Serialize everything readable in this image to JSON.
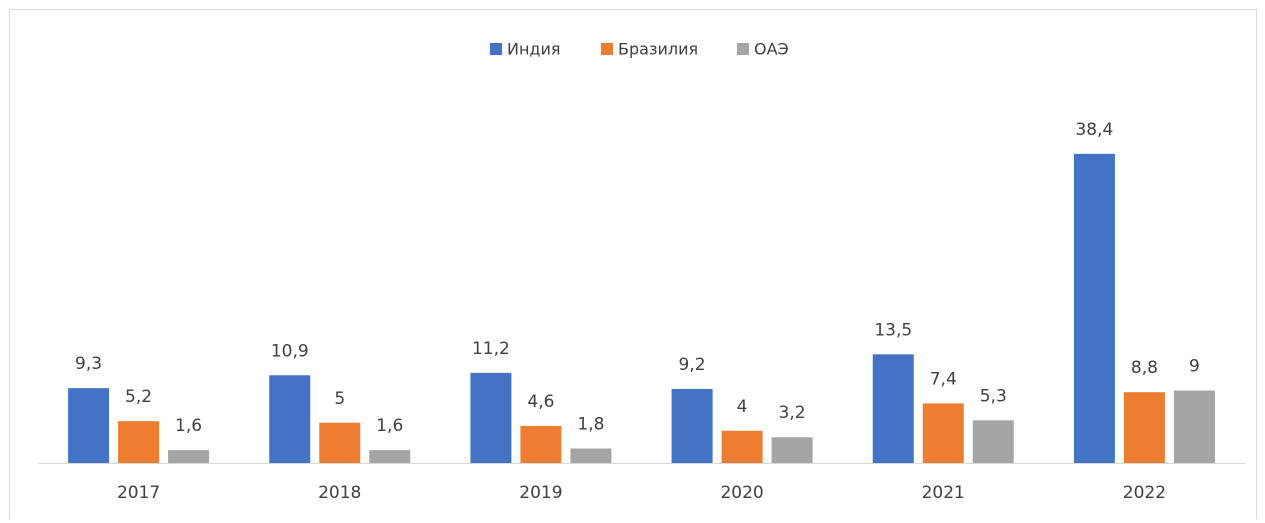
{
  "chart_data": {
    "type": "bar",
    "categories": [
      "2017",
      "2018",
      "2019",
      "2020",
      "2021",
      "2022"
    ],
    "series": [
      {
        "name": "Индия",
        "color": "#4472c4",
        "values": [
          9.3,
          10.9,
          11.2,
          9.2,
          13.5,
          38.4
        ],
        "value_labels": [
          "9,3",
          "10,9",
          "11,2",
          "9,2",
          "13,5",
          "38,4"
        ]
      },
      {
        "name": "Бразилия",
        "color": "#ed7d31",
        "values": [
          5.2,
          5,
          4.6,
          4,
          7.4,
          8.8
        ],
        "value_labels": [
          "5,2",
          "5",
          "4,6",
          "4",
          "7,4",
          "8,8"
        ]
      },
      {
        "name": "ОАЭ",
        "color": "#a5a5a5",
        "values": [
          1.6,
          1.6,
          1.8,
          3.2,
          5.3,
          9
        ],
        "value_labels": [
          "1,6",
          "1,6",
          "1,8",
          "3,2",
          "5,3",
          "9"
        ]
      }
    ],
    "legend": "top"
  }
}
